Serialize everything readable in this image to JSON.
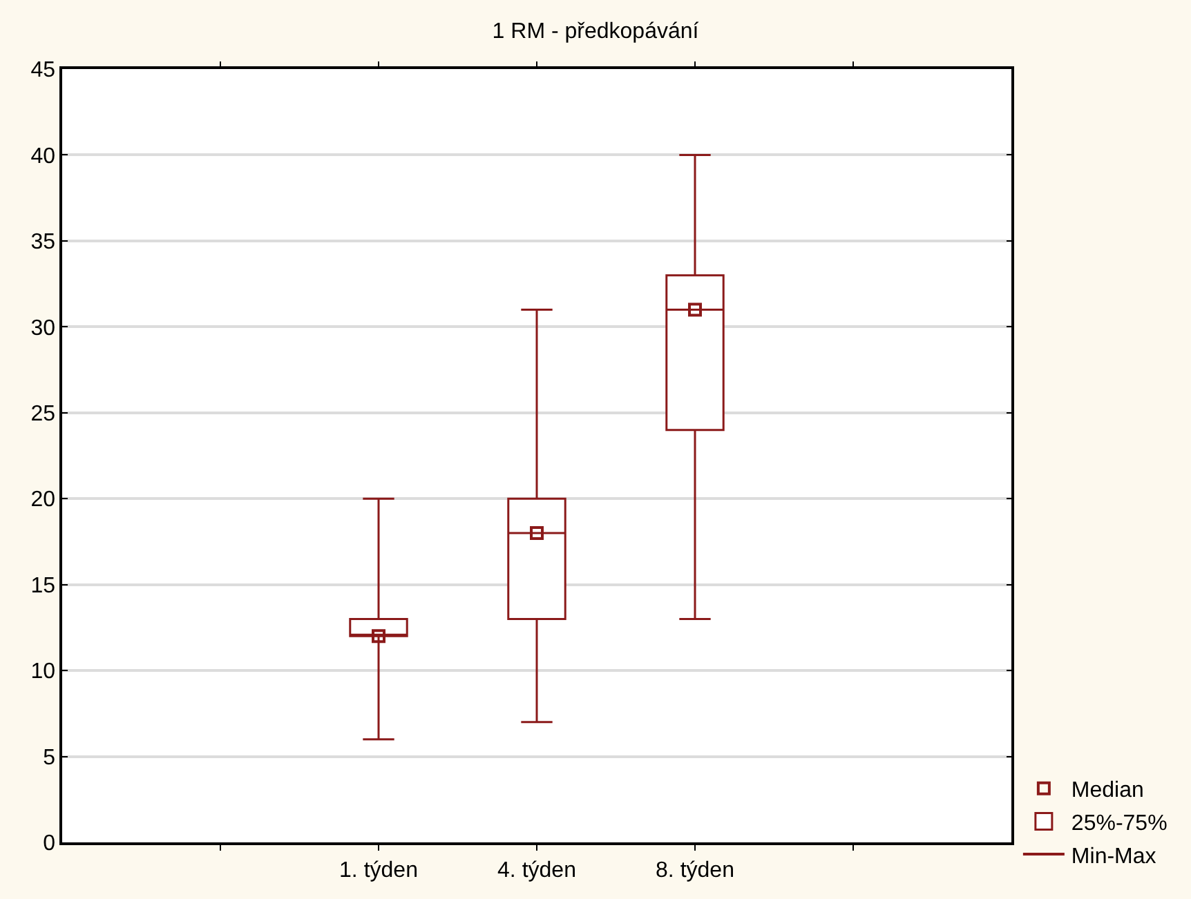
{
  "chart_data": {
    "type": "box",
    "title": "1 RM - předkopávání",
    "categories": [
      null,
      "1. týden",
      "4. týden",
      "8. týden",
      null
    ],
    "series": [
      {
        "name": "25%-75%",
        "color": "#8b1a1a",
        "boxes": [
          null,
          {
            "low": 6,
            "q1": 12,
            "median": 12,
            "q3": 13,
            "high": 20
          },
          {
            "low": 7,
            "q1": 13,
            "median": 18,
            "q3": 20,
            "high": 31
          },
          {
            "low": 13,
            "q1": 24,
            "median": 31,
            "q3": 33,
            "high": 40
          },
          null
        ]
      },
      {
        "type": "scatter",
        "name": "Median",
        "color": "#8b1a1a",
        "x": [
          "1. týden",
          "4. týden",
          "8. týden"
        ],
        "values": [
          12,
          18,
          31
        ]
      },
      {
        "type": "line",
        "name": "Min-Max",
        "color": "#8b1a1a",
        "values": [
          null,
          null,
          null,
          null,
          null
        ]
      }
    ],
    "ylim": [
      0,
      45
    ],
    "yticks": [
      0,
      5,
      10,
      15,
      20,
      25,
      30,
      35,
      40,
      45
    ],
    "grid": "y",
    "legend": "bottom right",
    "marker": "square"
  }
}
